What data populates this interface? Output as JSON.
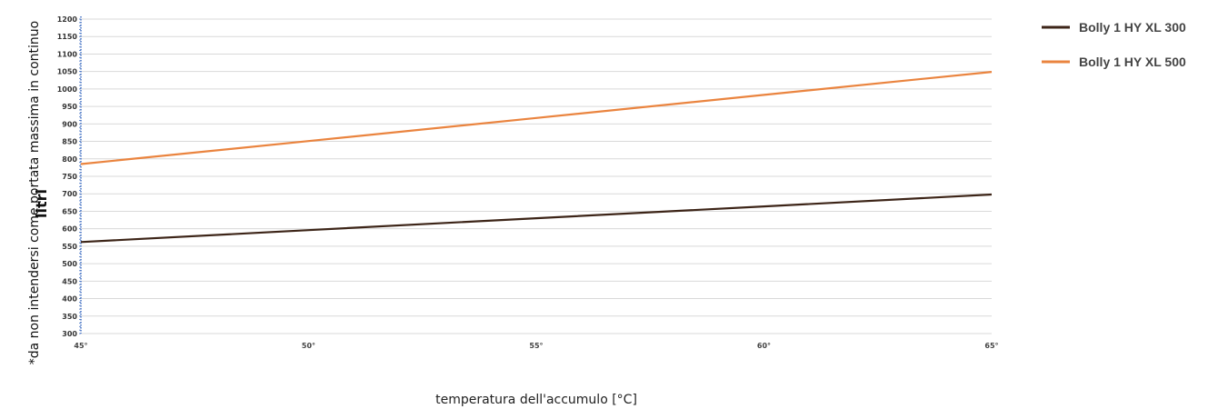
{
  "chart_data": {
    "type": "line",
    "title": "",
    "xlabel": "temperatura dell'accumulo [°C]",
    "ylabel": "litri",
    "ylabel_note": "*da non intendersi come portata massima in continuo",
    "x_tick_labels": [
      "45°",
      "50°",
      "55°",
      "60°",
      "65°"
    ],
    "x": [
      45,
      50,
      55,
      60,
      65
    ],
    "xlim": [
      45,
      65
    ],
    "ylim": [
      300,
      1200
    ],
    "y_ticks": [
      300,
      350,
      400,
      450,
      500,
      550,
      600,
      650,
      700,
      750,
      800,
      850,
      900,
      950,
      1000,
      1050,
      1100,
      1150,
      1200
    ],
    "grid": "horizontal",
    "legend_position": "top-right",
    "series": [
      {
        "name": "Bolly 1 HY XL 300",
        "color": "#3d2518",
        "values": [
          562,
          596,
          630,
          664,
          698
        ]
      },
      {
        "name": "Bolly 1 HY XL 500",
        "color": "#ea843f",
        "values": [
          785,
          851,
          917,
          983,
          1049
        ]
      }
    ]
  }
}
